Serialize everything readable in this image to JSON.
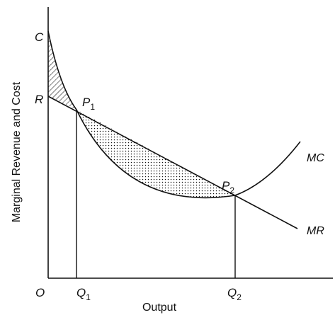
{
  "diagram": {
    "y_axis_title": "Marginal Revenue and Cost",
    "x_axis_title": "Output",
    "origin_label": "O",
    "point_labels": {
      "c": "C",
      "r": "R",
      "p1": "P",
      "p1_sub": "1",
      "p2": "P",
      "p2_sub": "2"
    },
    "x_tick_labels": {
      "q1": "Q",
      "q1_sub": "1",
      "q2": "Q",
      "q2_sub": "2"
    },
    "curve_labels": {
      "mc": "MC",
      "mr": "MR"
    },
    "shaded_regions": [
      "hatched-loss-area",
      "dotted-gain-area"
    ]
  }
}
